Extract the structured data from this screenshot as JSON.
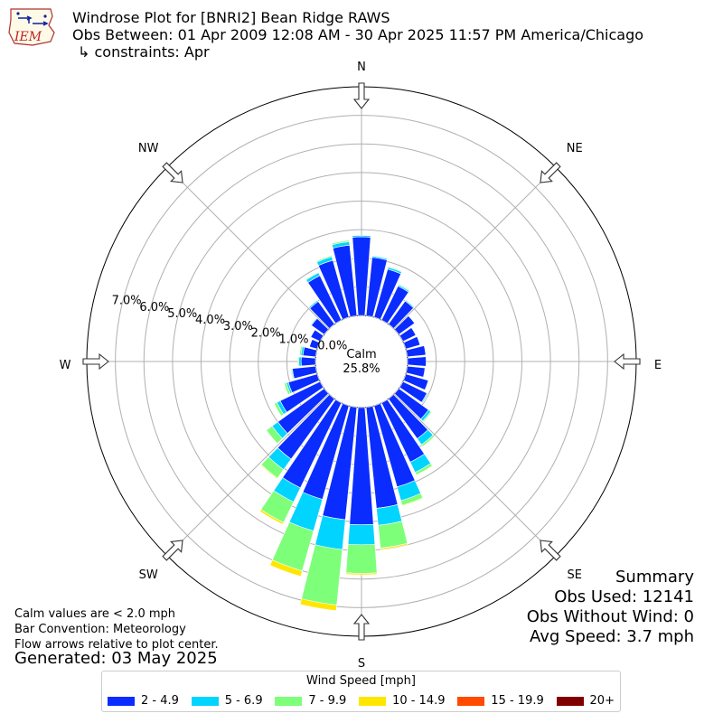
{
  "header": {
    "logo_text": "IEM",
    "title": "Windrose Plot for [BNRI2] Bean Ridge RAWS",
    "subtitle": "Obs Between: 01 Apr 2009 12:08 AM - 30 Apr 2025 11:57 PM America/Chicago",
    "constraints": "↳ constraints: Apr"
  },
  "notes": {
    "calm_note": "Calm values are < 2.0 mph",
    "bar_convention": "Bar Convention: Meteorology",
    "flow_arrows": "Flow arrows relative to plot center.",
    "generated": "Generated: 03 May 2025"
  },
  "summary": {
    "heading": "Summary",
    "obs_used": "Obs Used: 12141",
    "obs_without_wind": "Obs Without Wind: 0",
    "avg_speed": "Avg Speed: 3.7 mph"
  },
  "legend": {
    "title": "Wind Speed [mph]",
    "items": [
      {
        "label": "2 - 4.9",
        "color": "#0a2cff"
      },
      {
        "label": "5 - 6.9",
        "color": "#00d4ff"
      },
      {
        "label": "7 - 9.9",
        "color": "#7dff7a"
      },
      {
        "label": "10 - 14.9",
        "color": "#ffe600"
      },
      {
        "label": "15 - 19.9",
        "color": "#ff4a00"
      },
      {
        "label": "20+",
        "color": "#800000"
      }
    ]
  },
  "chart_data": {
    "type": "windrose",
    "calm_label": "Calm",
    "calm_percent": "25.8%",
    "direction_labels": [
      "N",
      "NE",
      "E",
      "SE",
      "S",
      "SW",
      "W",
      "NW"
    ],
    "radial_tick_labels": [
      "0.0%",
      "1.0%",
      "2.0%",
      "3.0%",
      "4.0%",
      "5.0%",
      "6.0%",
      "7.0%"
    ],
    "radial_max": 8.0,
    "bin_width_deg": 10,
    "speed_bins": [
      "2 - 4.9",
      "5 - 6.9",
      "7 - 9.9",
      "10 - 14.9",
      "15 - 19.9",
      "20+"
    ],
    "bin_colors": [
      "#0a2cff",
      "#00d4ff",
      "#7dff7a",
      "#ffe600",
      "#ff4a00",
      "#800000"
    ],
    "directions_deg": [
      0,
      10,
      20,
      30,
      40,
      50,
      60,
      70,
      80,
      90,
      100,
      110,
      120,
      130,
      140,
      150,
      160,
      170,
      180,
      190,
      200,
      210,
      220,
      230,
      240,
      250,
      260,
      270,
      280,
      290,
      300,
      310,
      320,
      330,
      340,
      350
    ],
    "cumulative_percent": [
      [
        2.75,
        2.8,
        2.8,
        2.8,
        2.8,
        2.8
      ],
      [
        2.05,
        2.1,
        2.12,
        2.12,
        2.12,
        2.12
      ],
      [
        1.75,
        1.82,
        1.85,
        1.85,
        1.85,
        1.85
      ],
      [
        1.32,
        1.37,
        1.4,
        1.4,
        1.4,
        1.4
      ],
      [
        1.0,
        1.04,
        1.06,
        1.06,
        1.06,
        1.06
      ],
      [
        0.68,
        0.7,
        0.7,
        0.7,
        0.7,
        0.7
      ],
      [
        0.5,
        0.52,
        0.52,
        0.52,
        0.52,
        0.52
      ],
      [
        0.52,
        0.54,
        0.54,
        0.54,
        0.54,
        0.54
      ],
      [
        0.65,
        0.66,
        0.66,
        0.66,
        0.66,
        0.66
      ],
      [
        0.65,
        0.65,
        0.65,
        0.65,
        0.65,
        0.65
      ],
      [
        0.62,
        0.62,
        0.62,
        0.62,
        0.62,
        0.62
      ],
      [
        0.82,
        0.83,
        0.83,
        0.83,
        0.83,
        0.83
      ],
      [
        0.93,
        0.97,
        0.98,
        0.98,
        0.98,
        0.98
      ],
      [
        1.28,
        1.38,
        1.42,
        1.42,
        1.42,
        1.42
      ],
      [
        1.72,
        1.98,
        2.05,
        2.05,
        2.05,
        2.05
      ],
      [
        2.3,
        2.7,
        2.8,
        2.82,
        2.82,
        2.82
      ],
      [
        2.95,
        3.45,
        3.62,
        3.65,
        3.65,
        3.65
      ],
      [
        3.55,
        4.15,
        4.95,
        5.0,
        5.0,
        5.0
      ],
      [
        4.1,
        4.8,
        5.8,
        5.85,
        5.85,
        5.85
      ],
      [
        3.95,
        5.0,
        6.95,
        7.15,
        7.15,
        7.15
      ],
      [
        3.4,
        4.55,
        6.0,
        6.2,
        6.2,
        6.2
      ],
      [
        3.3,
        3.85,
        4.65,
        4.72,
        4.72,
        4.72
      ],
      [
        2.6,
        3.05,
        3.42,
        3.45,
        3.45,
        3.45
      ],
      [
        2.0,
        2.25,
        2.5,
        2.52,
        2.52,
        2.52
      ],
      [
        1.55,
        1.68,
        1.78,
        1.78,
        1.78,
        1.78
      ],
      [
        1.05,
        1.12,
        1.2,
        1.2,
        1.2,
        1.2
      ],
      [
        0.82,
        0.85,
        0.88,
        0.88,
        0.88,
        0.88
      ],
      [
        0.5,
        0.58,
        0.62,
        0.62,
        0.62,
        0.62
      ],
      [
        0.45,
        0.52,
        0.57,
        0.57,
        0.57,
        0.57
      ],
      [
        0.28,
        0.3,
        0.3,
        0.3,
        0.3,
        0.3
      ],
      [
        0.36,
        0.38,
        0.39,
        0.39,
        0.39,
        0.39
      ],
      [
        0.55,
        0.58,
        0.6,
        0.6,
        0.6,
        0.6
      ],
      [
        0.98,
        1.03,
        1.05,
        1.05,
        1.05,
        1.05
      ],
      [
        1.73,
        1.84,
        1.87,
        1.87,
        1.87,
        1.87
      ],
      [
        2.07,
        2.2,
        2.24,
        2.24,
        2.24,
        2.24
      ],
      [
        2.48,
        2.6,
        2.65,
        2.65,
        2.65,
        2.65
      ]
    ]
  }
}
